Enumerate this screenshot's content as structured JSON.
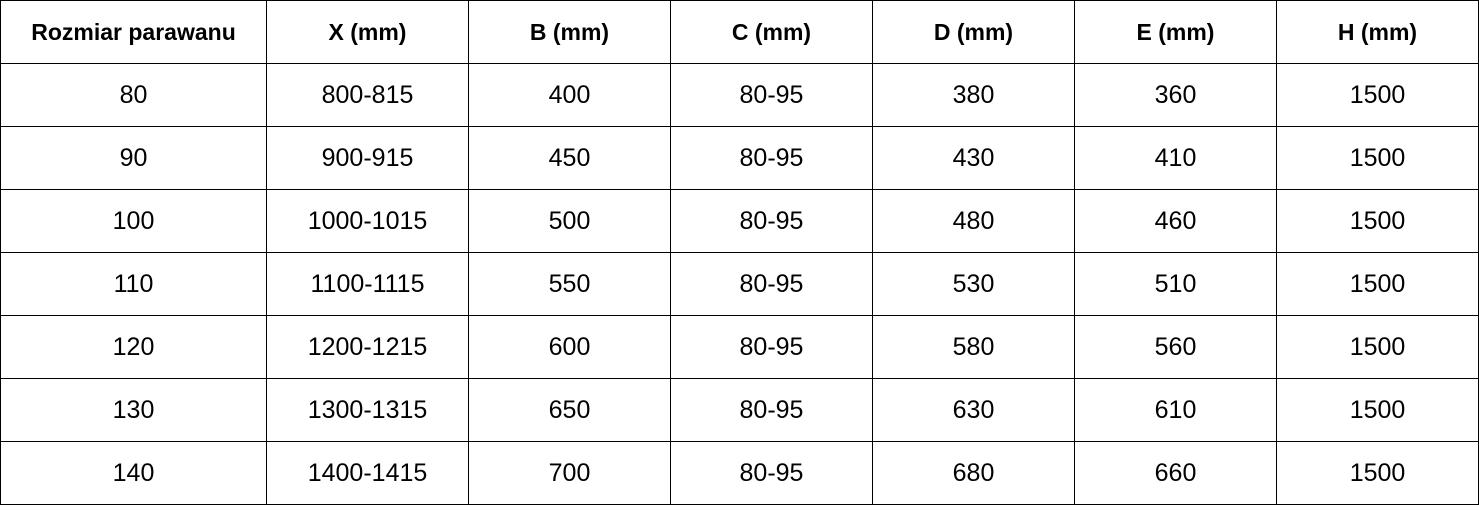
{
  "table": {
    "headers": [
      "Rozmiar parawanu",
      "X (mm)",
      "B (mm)",
      "C (mm)",
      "D (mm)",
      "E (mm)",
      "H (mm)"
    ],
    "rows": [
      [
        "80",
        "800-815",
        "400",
        "80-95",
        "380",
        "360",
        "1500"
      ],
      [
        "90",
        "900-915",
        "450",
        "80-95",
        "430",
        "410",
        "1500"
      ],
      [
        "100",
        "1000-1015",
        "500",
        "80-95",
        "480",
        "460",
        "1500"
      ],
      [
        "110",
        "1100-1115",
        "550",
        "80-95",
        "530",
        "510",
        "1500"
      ],
      [
        "120",
        "1200-1215",
        "600",
        "80-95",
        "580",
        "560",
        "1500"
      ],
      [
        "130",
        "1300-1315",
        "650",
        "80-95",
        "630",
        "610",
        "1500"
      ],
      [
        "140",
        "1400-1415",
        "700",
        "80-95",
        "680",
        "660",
        "1500"
      ]
    ]
  }
}
